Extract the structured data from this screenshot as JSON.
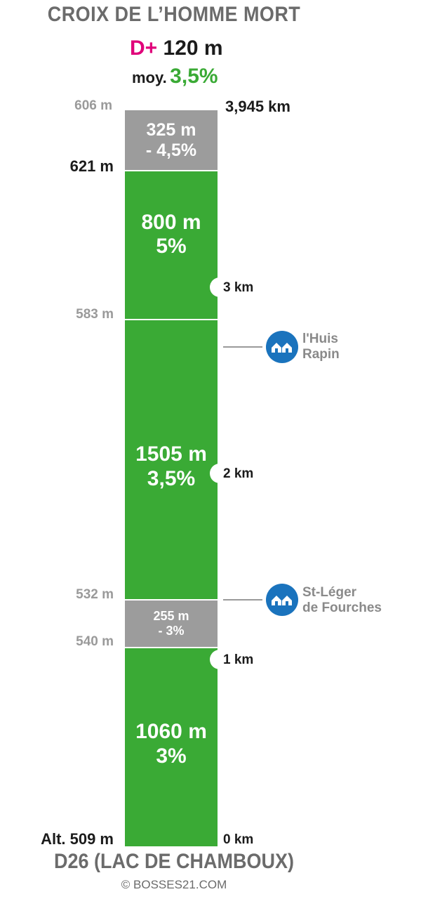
{
  "title": "CROIX DE L’HOMME MORT",
  "elevation_gain": {
    "prefix": "D+",
    "value": "120 m"
  },
  "average": {
    "prefix": "moy.",
    "value": "3,5%"
  },
  "segments": [
    {
      "length": "325 m",
      "grade": "- 4,5%",
      "type": "descent"
    },
    {
      "length": "800 m",
      "grade": "5%",
      "type": "climb"
    },
    {
      "length": "1505 m",
      "grade": "3,5%",
      "type": "climb"
    },
    {
      "length": "255 m",
      "grade": "- 3%",
      "type": "descent"
    },
    {
      "length": "1060 m",
      "grade": "3%",
      "type": "climb"
    }
  ],
  "altitudes": [
    "606 m",
    "621 m",
    "583 m",
    "532 m",
    "540 m",
    "Alt. 509 m"
  ],
  "distances": [
    "3,945 km",
    "3 km",
    "2 km",
    "1 km",
    "0 km"
  ],
  "villages": [
    {
      "line1": "l'Huis",
      "line2": "Rapin",
      "icon": "village-icon"
    },
    {
      "line1": "St-Léger",
      "line2": "de Fourches",
      "icon": "village-icon"
    }
  ],
  "start_label": "D26 (LAC DE CHAMBOUX)",
  "credit": "© BOSSES21.COM",
  "colors": {
    "climb": "#3aaa35",
    "descent": "#9c9c9c",
    "accent": "#e0007a",
    "village": "#1a73bd"
  }
}
